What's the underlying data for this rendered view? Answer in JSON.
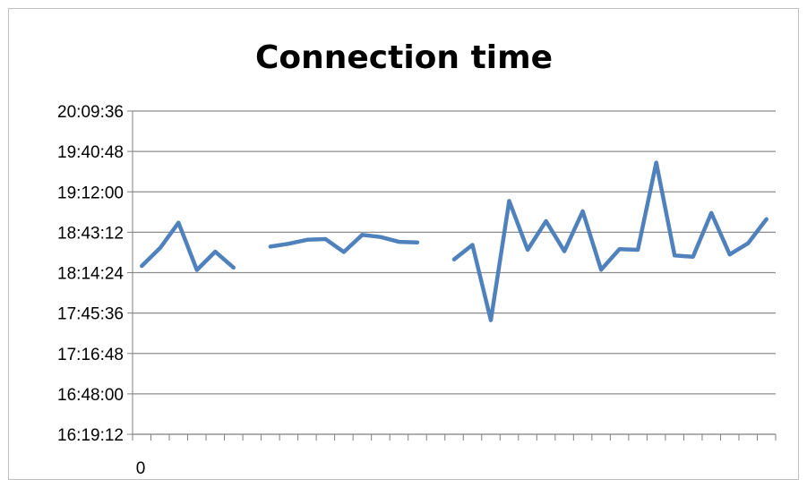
{
  "chart_data": {
    "type": "line",
    "title": "Connection time",
    "xlabel": "",
    "ylabel": "",
    "grid": true,
    "legend": "none",
    "line_color": "#4f81bd",
    "x_tick_labels": [
      "0"
    ],
    "y_tick_labels": [
      "16:19:12",
      "16:48:00",
      "17:16:48",
      "17:45:36",
      "18:14:24",
      "18:43:12",
      "19:12:00",
      "19:40:48",
      "20:09:36"
    ],
    "y_ticks_seconds": [
      58752,
      60480,
      62208,
      63936,
      65664,
      67392,
      69120,
      70848,
      72576
    ],
    "ylim_seconds": [
      58752,
      72576
    ],
    "x_count": 35,
    "values_seconds": [
      65950,
      66720,
      67800,
      65780,
      66560,
      65880,
      null,
      66780,
      66900,
      67070,
      67100,
      66550,
      67280,
      67190,
      66980,
      66960,
      null,
      66230,
      66850,
      63630,
      68730,
      66640,
      67870,
      66580,
      68290,
      65790,
      66670,
      66640,
      70370,
      66400,
      66340,
      68220,
      66440,
      66920,
      67950
    ]
  }
}
